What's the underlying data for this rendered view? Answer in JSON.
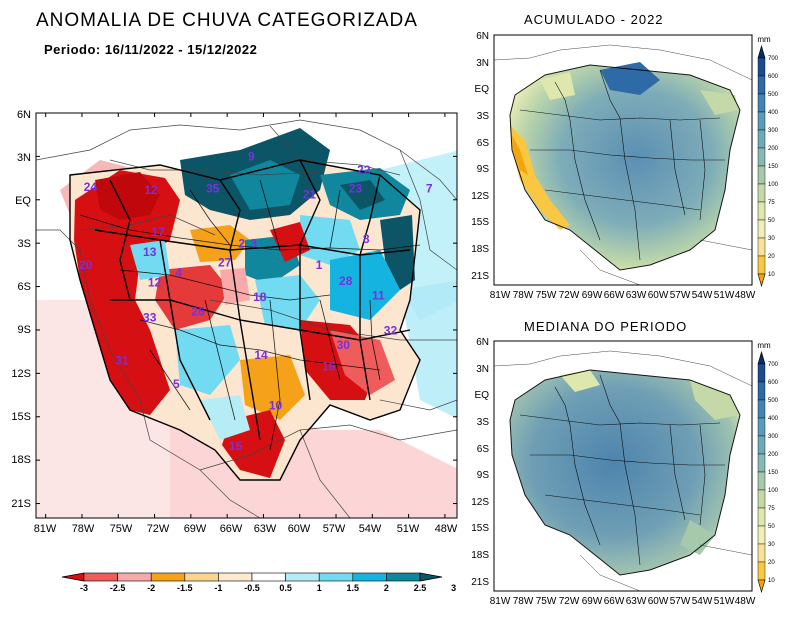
{
  "main_title": "ANOMALIA DE CHUVA CATEGORIZADA",
  "period_label": "Periodo: 16/11/2022 - 15/12/2022",
  "panel_top_title": "ACUMULADO - 2022",
  "panel_bottom_title": "MEDIANA DO PERIODO",
  "main_map": {
    "lat_ticks": [
      "6N",
      "3N",
      "EQ",
      "3S",
      "6S",
      "9S",
      "12S",
      "15S",
      "18S",
      "21S"
    ],
    "lon_ticks": [
      "81W",
      "78W",
      "75W",
      "72W",
      "69W",
      "66W",
      "63W",
      "60W",
      "57W",
      "54W",
      "51W",
      "48W"
    ],
    "basin_labels": [
      {
        "text": "24",
        "lon": -77.3,
        "lat": 0.6
      },
      {
        "text": "12",
        "lon": -72.3,
        "lat": 0.4
      },
      {
        "text": "35",
        "lon": -67.2,
        "lat": 0.5
      },
      {
        "text": "21",
        "lon": -59.2,
        "lat": 0.1
      },
      {
        "text": "23",
        "lon": -55.4,
        "lat": 0.5
      },
      {
        "text": "22",
        "lon": -54.7,
        "lat": 1.8
      },
      {
        "text": "9",
        "lon": -64.0,
        "lat": 2.7
      },
      {
        "text": "7",
        "lon": -49.3,
        "lat": 0.5
      },
      {
        "text": "17",
        "lon": -71.7,
        "lat": -2.5
      },
      {
        "text": "13",
        "lon": -72.4,
        "lat": -3.9
      },
      {
        "text": "20",
        "lon": -77.7,
        "lat": -4.8
      },
      {
        "text": "27",
        "lon": -66.2,
        "lat": -4.6
      },
      {
        "text": "2",
        "lon": -64.8,
        "lat": -3.3
      },
      {
        "text": "3",
        "lon": -63.8,
        "lat": -3.3
      },
      {
        "text": "8",
        "lon": -54.5,
        "lat": -3.0
      },
      {
        "text": "1",
        "lon": -58.4,
        "lat": -4.8
      },
      {
        "text": "4",
        "lon": -70.0,
        "lat": -5.3
      },
      {
        "text": "12",
        "lon": -72.0,
        "lat": -6.0
      },
      {
        "text": "28",
        "lon": -56.2,
        "lat": -5.9
      },
      {
        "text": "18",
        "lon": -63.3,
        "lat": -7.0
      },
      {
        "text": "11",
        "lon": -53.5,
        "lat": -6.9
      },
      {
        "text": "26",
        "lon": -68.4,
        "lat": -8.0
      },
      {
        "text": "33",
        "lon": -72.4,
        "lat": -8.4
      },
      {
        "text": "32",
        "lon": -52.5,
        "lat": -9.3
      },
      {
        "text": "30",
        "lon": -56.4,
        "lat": -10.3
      },
      {
        "text": "14",
        "lon": -63.2,
        "lat": -11.0
      },
      {
        "text": "16",
        "lon": -57.6,
        "lat": -11.8
      },
      {
        "text": "31",
        "lon": -74.7,
        "lat": -11.4
      },
      {
        "text": "5",
        "lon": -70.2,
        "lat": -13.0
      },
      {
        "text": "10",
        "lon": -62.0,
        "lat": -14.5
      },
      {
        "text": "15",
        "lon": -65.3,
        "lat": -17.3
      }
    ]
  },
  "small_map": {
    "lat_ticks": [
      "6N",
      "3N",
      "EQ",
      "3S",
      "6S",
      "9S",
      "12S",
      "15S",
      "18S",
      "21S"
    ],
    "lon_ticks": [
      "81W",
      "78W",
      "75W",
      "72W",
      "69W",
      "66W",
      "63W",
      "60W",
      "57W",
      "54W",
      "51W",
      "48W"
    ]
  },
  "anomaly_colorbar": {
    "labels": [
      "-3",
      "-2.5",
      "-2",
      "-1.5",
      "-1",
      "-0.5",
      "0.5",
      "1",
      "1.5",
      "2",
      "2.5",
      "3"
    ],
    "colors": [
      "#d60f12",
      "#ee5c5c",
      "#f8a9a9",
      "#f5a21a",
      "#fbd58e",
      "#fde9cf",
      "#ffffff",
      "#b6ecf6",
      "#72daf1",
      "#15b3e0",
      "#11879e",
      "#0b5567"
    ]
  },
  "precip_colorbar": {
    "unit": "mm",
    "labels": [
      "700",
      "600",
      "500",
      "400",
      "300",
      "200",
      "150",
      "100",
      "75",
      "50",
      "30",
      "20",
      "10"
    ],
    "colors": [
      "#0b2a6e",
      "#1c4b8f",
      "#2e6aa6",
      "#4185b4",
      "#5a9abd",
      "#6fa9b9",
      "#87b8b4",
      "#a6c9ab",
      "#c4d9a7",
      "#dde7ae",
      "#f1eebb",
      "#f8e29a",
      "#f9c742",
      "#f6a40c"
    ]
  }
}
